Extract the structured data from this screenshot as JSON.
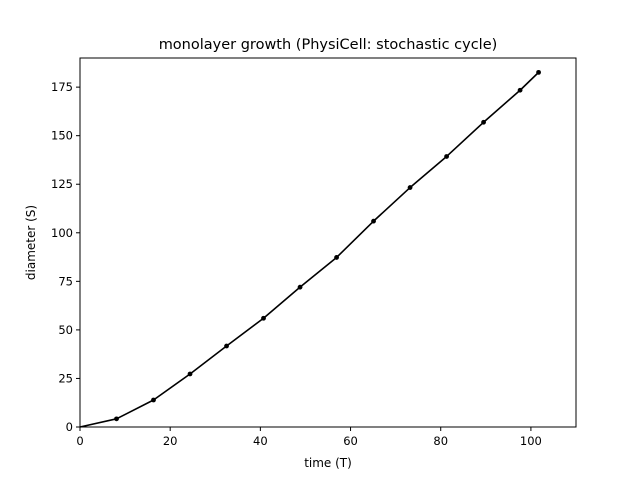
{
  "chart_data": {
    "type": "line",
    "title": "monolayer growth (PhysiCell: stochastic cycle)",
    "xlabel": "time (T)",
    "ylabel": "diameter (S)",
    "xlim": [
      0,
      110
    ],
    "ylim": [
      0,
      190
    ],
    "xticks": [
      0,
      20,
      40,
      60,
      80,
      100
    ],
    "yticks": [
      0,
      25,
      50,
      75,
      100,
      125,
      150,
      175
    ],
    "grid": false,
    "series": [
      {
        "color": "#000000",
        "marker": "dot",
        "x": [
          0,
          8.1,
          16.3,
          24.4,
          32.5,
          40.7,
          48.8,
          56.9,
          65.1,
          73.2,
          81.3,
          89.5,
          97.6,
          101.7
        ],
        "y": [
          0,
          4.2,
          13.9,
          27.3,
          41.7,
          56.0,
          72.0,
          87.3,
          106.0,
          123.3,
          139.3,
          156.9,
          173.4,
          182.6
        ]
      }
    ]
  }
}
